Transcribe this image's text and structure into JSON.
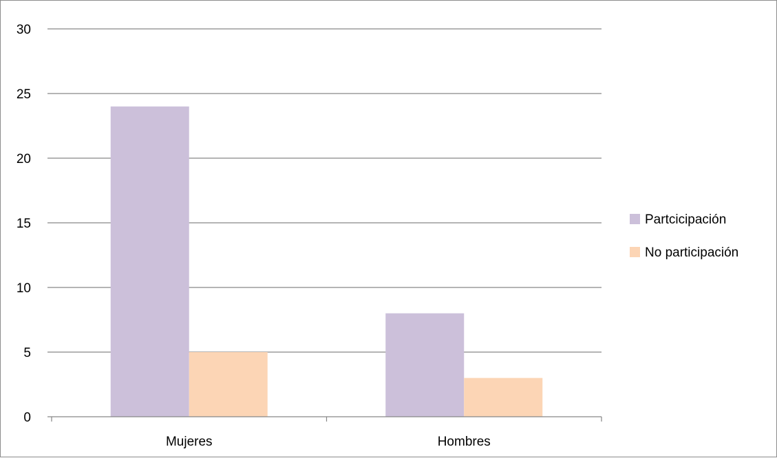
{
  "chart_data": {
    "type": "bar",
    "categories": [
      "Mujeres",
      "Hombres"
    ],
    "series": [
      {
        "name": "Partcicipación",
        "values": [
          24,
          8
        ],
        "color": "#ccc0da"
      },
      {
        "name": "No participación",
        "values": [
          5,
          3
        ],
        "color": "#fcd5b5"
      }
    ],
    "ylim": [
      0,
      30
    ],
    "yticks": [
      0,
      5,
      10,
      15,
      20,
      25,
      30
    ],
    "grid": true,
    "legend_position": "right",
    "gridline_color": "#868686",
    "axis_color": "#868686"
  }
}
